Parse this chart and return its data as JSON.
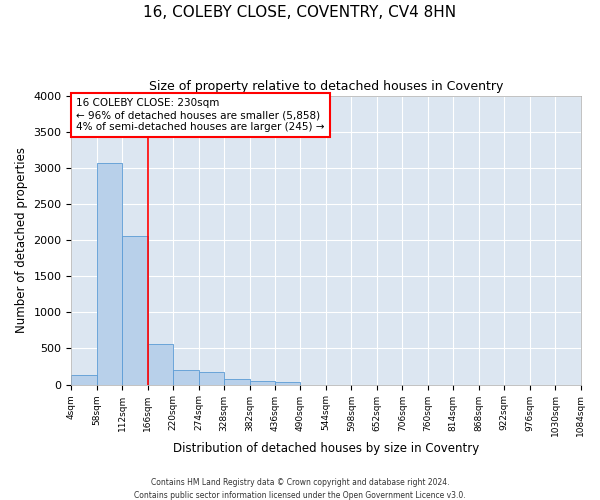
{
  "title": "16, COLEBY CLOSE, COVENTRY, CV4 8HN",
  "subtitle": "Size of property relative to detached houses in Coventry",
  "xlabel": "Distribution of detached houses by size in Coventry",
  "ylabel": "Number of detached properties",
  "footer_line1": "Contains HM Land Registry data © Crown copyright and database right 2024.",
  "footer_line2": "Contains public sector information licensed under the Open Government Licence v3.0.",
  "bin_labels": [
    "4sqm",
    "58sqm",
    "112sqm",
    "166sqm",
    "220sqm",
    "274sqm",
    "328sqm",
    "382sqm",
    "436sqm",
    "490sqm",
    "544sqm",
    "598sqm",
    "652sqm",
    "706sqm",
    "760sqm",
    "814sqm",
    "868sqm",
    "922sqm",
    "976sqm",
    "1030sqm",
    "1084sqm"
  ],
  "bar_values": [
    130,
    3060,
    2060,
    560,
    200,
    180,
    75,
    55,
    40,
    0,
    0,
    0,
    0,
    0,
    0,
    0,
    0,
    0,
    0,
    0
  ],
  "bar_color": "#b8d0ea",
  "bar_edge_color": "#5b9bd5",
  "annotation_line1": "16 COLEBY CLOSE: 230sqm",
  "annotation_line2": "← 96% of detached houses are smaller (5,858)",
  "annotation_line3": "4% of semi-detached houses are larger (245) →",
  "vline_x": 3,
  "vline_color": "red",
  "ylim": [
    0,
    4000
  ],
  "yticks": [
    0,
    500,
    1000,
    1500,
    2000,
    2500,
    3000,
    3500,
    4000
  ],
  "plot_bg_color": "#dce6f1",
  "grid_color": "white",
  "title_fontsize": 11,
  "subtitle_fontsize": 9
}
